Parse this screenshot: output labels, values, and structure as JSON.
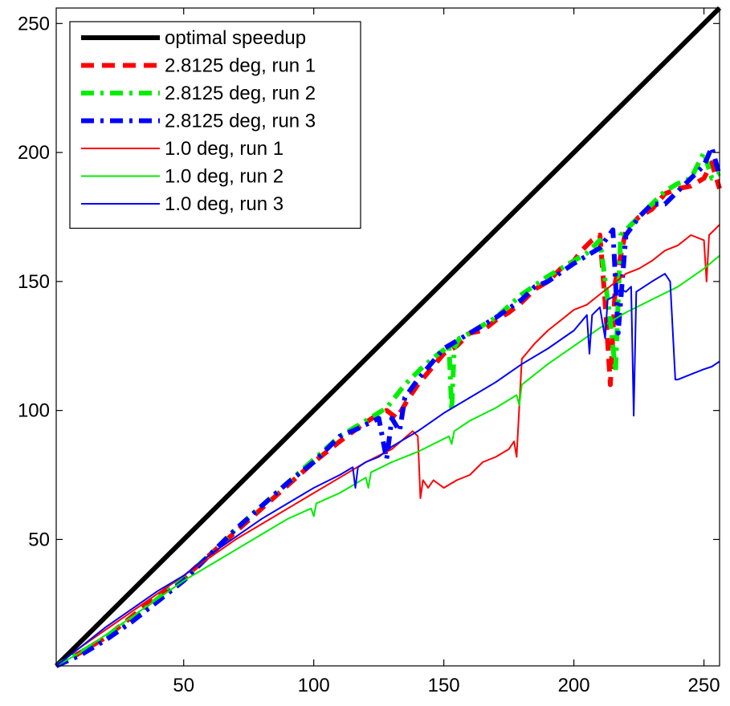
{
  "chart_data": {
    "type": "line",
    "title": "",
    "xlabel": "",
    "ylabel": "",
    "xlim": [
      1,
      256
    ],
    "ylim": [
      1,
      256
    ],
    "xticks": [
      50,
      100,
      150,
      200,
      250
    ],
    "yticks": [
      50,
      100,
      150,
      200,
      250
    ],
    "grid": false,
    "legend_position": "top-left",
    "series": [
      {
        "name": "optimal speedup",
        "color": "#000000",
        "style": "solid",
        "width": "thick",
        "x": [
          1,
          256
        ],
        "y": [
          1,
          256
        ]
      },
      {
        "name": "2.8125 deg, run 1",
        "color": "#ff0000",
        "style": "dashed",
        "width": "thick",
        "x": [
          1,
          10,
          20,
          30,
          40,
          50,
          60,
          70,
          80,
          90,
          100,
          110,
          118,
          124,
          128,
          132,
          136,
          140,
          145,
          150,
          155,
          160,
          165,
          170,
          175,
          180,
          185,
          190,
          195,
          200,
          203,
          207,
          210,
          212,
          214,
          216,
          220,
          225,
          230,
          235,
          240,
          245,
          250,
          253,
          256
        ],
        "y": [
          1,
          6,
          12,
          20,
          28,
          35,
          44,
          53,
          62,
          71,
          80,
          88,
          94,
          98,
          100,
          97,
          104,
          110,
          116,
          122,
          125,
          130,
          131,
          135,
          138,
          142,
          147,
          150,
          155,
          158,
          162,
          166,
          168,
          142,
          110,
          150,
          170,
          175,
          178,
          184,
          186,
          187,
          190,
          196,
          186
        ]
      },
      {
        "name": "2.8125 deg, run 2",
        "color": "#00ee00",
        "style": "dashdot",
        "width": "thick",
        "x": [
          1,
          10,
          20,
          30,
          40,
          50,
          60,
          70,
          80,
          90,
          100,
          110,
          120,
          128,
          135,
          142,
          148,
          152,
          153,
          154,
          156,
          160,
          165,
          170,
          180,
          190,
          200,
          205,
          210,
          214,
          216,
          218,
          220,
          225,
          230,
          235,
          240,
          245,
          250,
          253,
          256
        ],
        "y": [
          1,
          6,
          12,
          19,
          27,
          35,
          44,
          54,
          63,
          72,
          81,
          90,
          96,
          101,
          110,
          117,
          122,
          125,
          100,
          124,
          128,
          130,
          133,
          136,
          145,
          152,
          158,
          161,
          166,
          135,
          115,
          168,
          170,
          175,
          180,
          185,
          188,
          190,
          200,
          190,
          192
        ]
      },
      {
        "name": "2.8125 deg, run 3",
        "color": "#0000ff",
        "style": "dashdot",
        "width": "thick",
        "x": [
          1,
          10,
          20,
          30,
          40,
          50,
          60,
          70,
          80,
          90,
          100,
          110,
          117,
          125,
          128,
          130,
          133,
          135,
          140,
          145,
          150,
          160,
          170,
          180,
          185,
          190,
          200,
          205,
          210,
          215,
          217,
          220,
          225,
          230,
          235,
          240,
          245,
          250,
          253,
          256
        ],
        "y": [
          1,
          5,
          11,
          18,
          26,
          34,
          44,
          54,
          63,
          72,
          80,
          90,
          93,
          97,
          81,
          97,
          92,
          105,
          112,
          118,
          124,
          130,
          136,
          143,
          148,
          150,
          157,
          160,
          163,
          170,
          130,
          168,
          175,
          180,
          180,
          185,
          190,
          195,
          202,
          191
        ]
      },
      {
        "name": "1.0 deg, run 1",
        "color": "#ff0000",
        "style": "solid",
        "width": "thin",
        "x": [
          1,
          10,
          20,
          30,
          40,
          50,
          60,
          70,
          80,
          90,
          100,
          110,
          120,
          130,
          138,
          140,
          141,
          142,
          144,
          146,
          150,
          155,
          160,
          165,
          170,
          175,
          177,
          178,
          180,
          185,
          190,
          195,
          200,
          205,
          210,
          215,
          220,
          225,
          230,
          235,
          240,
          245,
          250,
          251,
          252,
          256
        ],
        "y": [
          1,
          8,
          15,
          22,
          29,
          36,
          43,
          50,
          56,
          62,
          68,
          74,
          80,
          85,
          92,
          90,
          66,
          73,
          70,
          73,
          70,
          73,
          75,
          80,
          82,
          85,
          88,
          82,
          120,
          126,
          131,
          135,
          139,
          141,
          145,
          149,
          153,
          155,
          158,
          162,
          164,
          168,
          166,
          150,
          168,
          172
        ]
      },
      {
        "name": "1.0 deg, run 2",
        "color": "#00ee00",
        "style": "solid",
        "width": "thin",
        "x": [
          1,
          10,
          20,
          30,
          40,
          50,
          60,
          70,
          80,
          90,
          99,
          100,
          101,
          110,
          120,
          121,
          122,
          130,
          140,
          150,
          152,
          153,
          154,
          160,
          170,
          178,
          179,
          180,
          190,
          200,
          210,
          220,
          230,
          240,
          250,
          256
        ],
        "y": [
          1,
          6,
          13,
          20,
          27,
          34,
          40,
          46,
          52,
          58,
          62,
          59,
          64,
          68,
          74,
          70,
          76,
          80,
          84,
          89,
          90,
          87,
          92,
          96,
          101,
          106,
          102,
          110,
          118,
          125,
          132,
          138,
          143,
          148,
          155,
          160
        ]
      },
      {
        "name": "1.0 deg, run 3",
        "color": "#0000ff",
        "style": "solid",
        "width": "thin",
        "x": [
          1,
          10,
          20,
          30,
          40,
          50,
          60,
          70,
          80,
          90,
          100,
          110,
          115,
          116,
          117,
          120,
          125,
          130,
          140,
          150,
          160,
          170,
          180,
          190,
          200,
          205,
          206,
          207,
          210,
          212,
          213,
          215,
          218,
          220,
          222,
          223,
          224,
          230,
          235,
          237,
          239,
          240,
          245,
          250,
          253,
          256
        ],
        "y": [
          1,
          8,
          16,
          23,
          30,
          36,
          44,
          51,
          58,
          64,
          70,
          75,
          78,
          70,
          78,
          80,
          82,
          86,
          92,
          99,
          105,
          111,
          118,
          124,
          131,
          137,
          122,
          137,
          140,
          128,
          143,
          144,
          147,
          146,
          148,
          98,
          146,
          150,
          153,
          150,
          112,
          112,
          114,
          116,
          117,
          119
        ]
      }
    ]
  }
}
